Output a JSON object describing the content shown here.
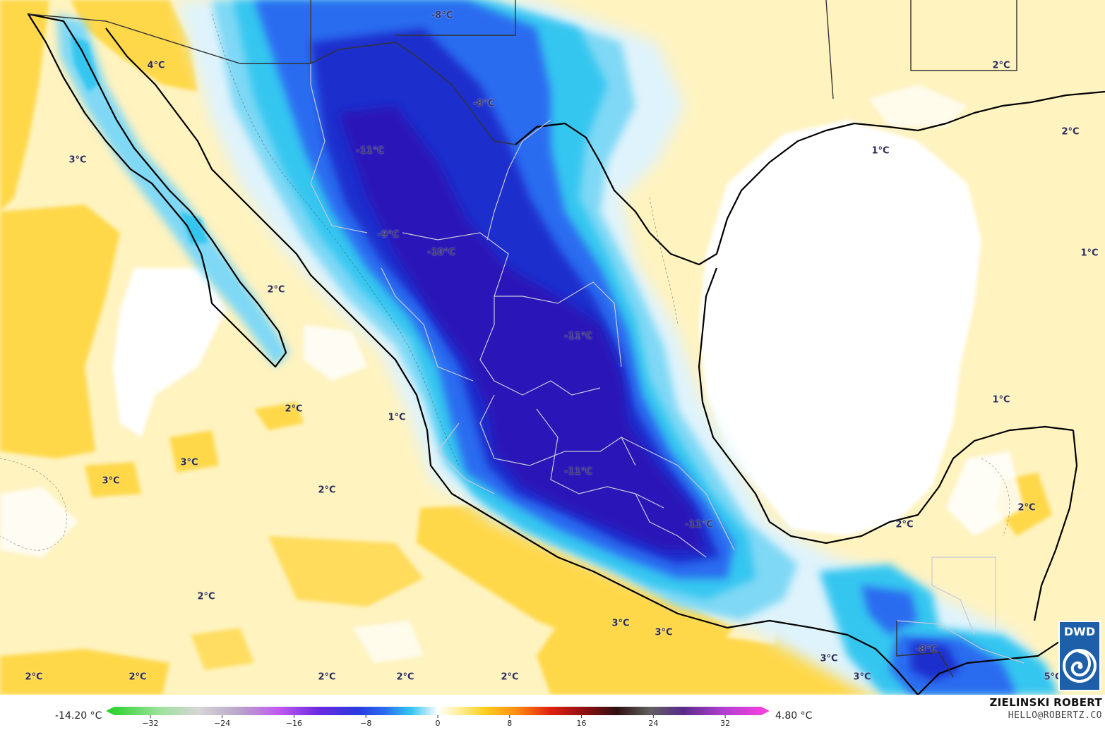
{
  "map": {
    "temperature_labels": [
      {
        "id": "t1",
        "text": "-8°C",
        "cold": true
      },
      {
        "id": "t2",
        "text": "4°C",
        "cold": false
      },
      {
        "id": "t3",
        "text": "-8°C",
        "cold": true
      },
      {
        "id": "t4",
        "text": "2°C",
        "cold": false
      },
      {
        "id": "t5",
        "text": "2°C",
        "cold": false
      },
      {
        "id": "t6",
        "text": "3°C",
        "cold": false
      },
      {
        "id": "t7",
        "text": "-11°C",
        "cold": true
      },
      {
        "id": "t8",
        "text": "1°C",
        "cold": false
      },
      {
        "id": "t9",
        "text": "-9°C",
        "cold": true
      },
      {
        "id": "t10",
        "text": "-10°C",
        "cold": true
      },
      {
        "id": "t11",
        "text": "1°C",
        "cold": false
      },
      {
        "id": "t12",
        "text": "2°C",
        "cold": false
      },
      {
        "id": "t13",
        "text": "-11°C",
        "cold": true
      },
      {
        "id": "t14",
        "text": "2°C",
        "cold": false
      },
      {
        "id": "t15",
        "text": "1°C",
        "cold": false
      },
      {
        "id": "t16",
        "text": "1°C",
        "cold": false
      },
      {
        "id": "t17",
        "text": "3°C",
        "cold": false
      },
      {
        "id": "t18",
        "text": "3°C",
        "cold": false
      },
      {
        "id": "t19",
        "text": "2°C",
        "cold": false
      },
      {
        "id": "t20",
        "text": "-11°C",
        "cold": true
      },
      {
        "id": "t21",
        "text": "2°C",
        "cold": false
      },
      {
        "id": "t22",
        "text": "-11°C",
        "cold": true
      },
      {
        "id": "t23",
        "text": "2°C",
        "cold": false
      },
      {
        "id": "t24",
        "text": "2°C",
        "cold": false
      },
      {
        "id": "t25",
        "text": "3°C",
        "cold": false
      },
      {
        "id": "t26",
        "text": "3°C",
        "cold": false
      },
      {
        "id": "t27",
        "text": "-8°C",
        "cold": true
      },
      {
        "id": "t28",
        "text": "3°C",
        "cold": false
      },
      {
        "id": "t29",
        "text": "2°C",
        "cold": false
      },
      {
        "id": "t30",
        "text": "2°C",
        "cold": false
      },
      {
        "id": "t31",
        "text": "2°C",
        "cold": false
      },
      {
        "id": "t32",
        "text": "2°C",
        "cold": false
      },
      {
        "id": "t33",
        "text": "2°C",
        "cold": false
      },
      {
        "id": "t34",
        "text": "3°C",
        "cold": false
      },
      {
        "id": "t35",
        "text": "5°C",
        "cold": true
      }
    ],
    "colors": {
      "ocean_warm": "#ffd84a",
      "ocean_pale": "#fff3c0",
      "cold_light": "#bfe8fb",
      "cold_cyan": "#35c6f0",
      "cold_blue": "#2a6cf0",
      "cold_deep": "#1c2ecc",
      "cold_core": "#2a18b8",
      "coastline": "#000000",
      "state_border": "#c8c8d8"
    }
  },
  "legend": {
    "min_value": "-14.20 °C",
    "max_value": "4.80 °C",
    "ticks": [
      {
        "value": -32,
        "label": "−32"
      },
      {
        "value": -24,
        "label": "−24"
      },
      {
        "value": -16,
        "label": "−16"
      },
      {
        "value": -8,
        "label": "−8"
      },
      {
        "value": 0,
        "label": "0"
      },
      {
        "value": 8,
        "label": "8"
      },
      {
        "value": 16,
        "label": "16"
      },
      {
        "value": 24,
        "label": "24"
      },
      {
        "value": 32,
        "label": "32"
      }
    ],
    "range": [
      -36,
      36
    ]
  },
  "credits": {
    "author": "ZIELINSKI ROBERT",
    "email": "HELLO@ROBERTZ.CO",
    "logo_text": "DWD"
  }
}
